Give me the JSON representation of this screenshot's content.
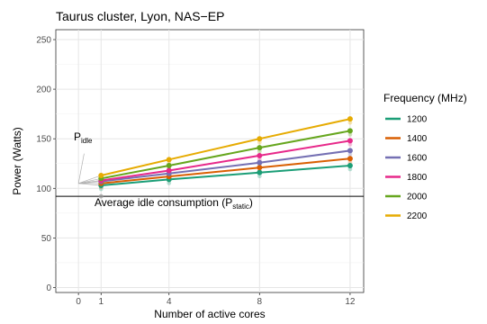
{
  "chart_data": {
    "type": "line",
    "title": "Taurus cluster, Lyon, NAS−EP",
    "xlabel": "Number of active cores",
    "ylabel": "Power (Watts)",
    "xlim": [
      -1,
      12.6
    ],
    "ylim": [
      -5,
      260
    ],
    "x_ticks": [
      0,
      1,
      4,
      8,
      12
    ],
    "y_ticks": [
      0,
      50,
      100,
      150,
      200,
      250
    ],
    "grid": true,
    "legend": {
      "title": "Frequency (MHz)",
      "position": "right"
    },
    "series": [
      {
        "name": "1200",
        "color": "#1b9e77",
        "points": [
          [
            1,
            103
          ],
          [
            4,
            109
          ],
          [
            8,
            116
          ],
          [
            12,
            123
          ]
        ]
      },
      {
        "name": "1400",
        "color": "#d95f02",
        "points": [
          [
            1,
            105
          ],
          [
            4,
            112
          ],
          [
            8,
            121
          ],
          [
            12,
            130
          ]
        ]
      },
      {
        "name": "1600",
        "color": "#7570b3",
        "points": [
          [
            1,
            107
          ],
          [
            4,
            115
          ],
          [
            8,
            126
          ],
          [
            12,
            138
          ]
        ]
      },
      {
        "name": "1800",
        "color": "#e7298a",
        "points": [
          [
            1,
            108
          ],
          [
            4,
            118
          ],
          [
            8,
            133
          ],
          [
            12,
            148
          ]
        ]
      },
      {
        "name": "2000",
        "color": "#66a61e",
        "points": [
          [
            1,
            110
          ],
          [
            4,
            123
          ],
          [
            8,
            141
          ],
          [
            12,
            158
          ]
        ]
      },
      {
        "name": "2200",
        "color": "#e6ab02",
        "points": [
          [
            1,
            113
          ],
          [
            4,
            129
          ],
          [
            8,
            150
          ],
          [
            12,
            170
          ]
        ]
      }
    ],
    "idle_origin": {
      "x": 0,
      "y": 105
    },
    "static_level": 92,
    "annotations": {
      "idle_label": "P",
      "idle_sub": "idle",
      "static_label_prefix": "Average idle consumption (P",
      "static_sub": "static",
      "static_label_suffix": ")"
    }
  }
}
